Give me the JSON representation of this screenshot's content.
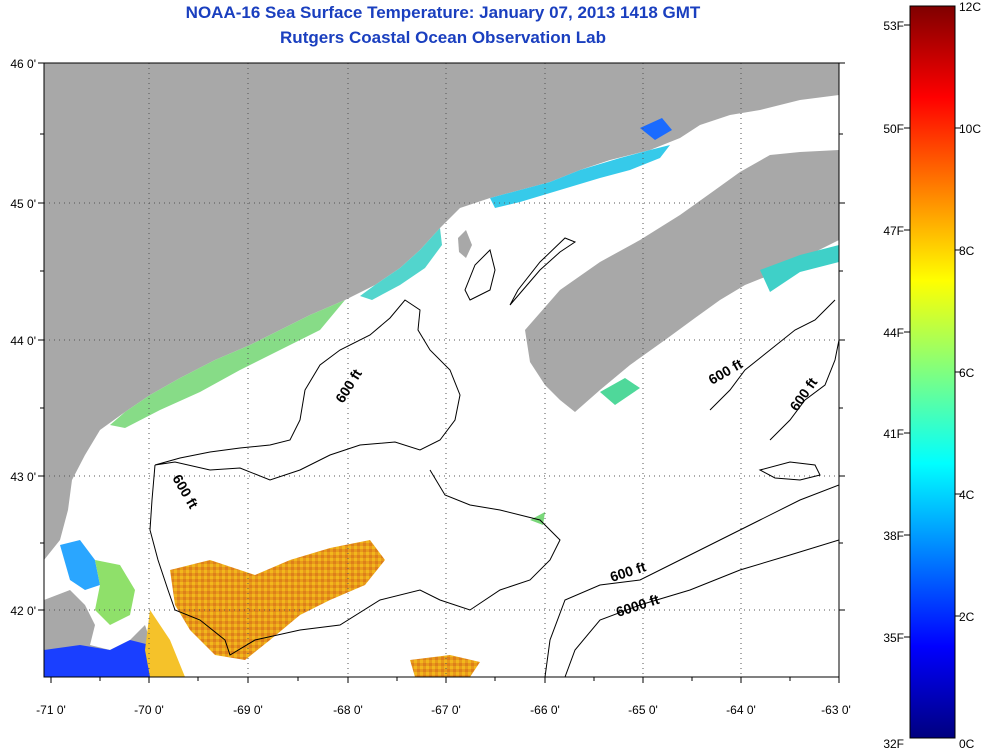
{
  "header": {
    "title": "NOAA-16 Sea Surface Temperature:  January 07, 2013 1418 GMT",
    "subtitle": "Rutgers Coastal Ocean Observation Lab"
  },
  "map": {
    "lat_labels": [
      "46 0'",
      "45 0'",
      "44 0'",
      "43 0'",
      "42 0'"
    ],
    "lon_labels": [
      "-71 0'",
      "-70 0'",
      "-69 0'",
      "-68 0'",
      "-67 0'",
      "-66 0'",
      "-65 0'",
      "-64 0'",
      "-63 0'"
    ],
    "contour_labels": [
      "600 ft",
      "600 ft",
      "600 ft",
      "600 ft",
      "600 ft",
      "6000 ft"
    ],
    "colors": {
      "land": "#a8a8a8",
      "ocean_no_data": "#ffffff",
      "contour": "#000000"
    }
  },
  "colorbar": {
    "fahrenheit_labels": [
      "53F",
      "50F",
      "47F",
      "44F",
      "41F",
      "38F",
      "35F",
      "32F"
    ],
    "celsius_labels": [
      "12C",
      "10C",
      "8C",
      "6C",
      "4C",
      "2C",
      "0C"
    ],
    "range_c": [
      0,
      12
    ]
  }
}
